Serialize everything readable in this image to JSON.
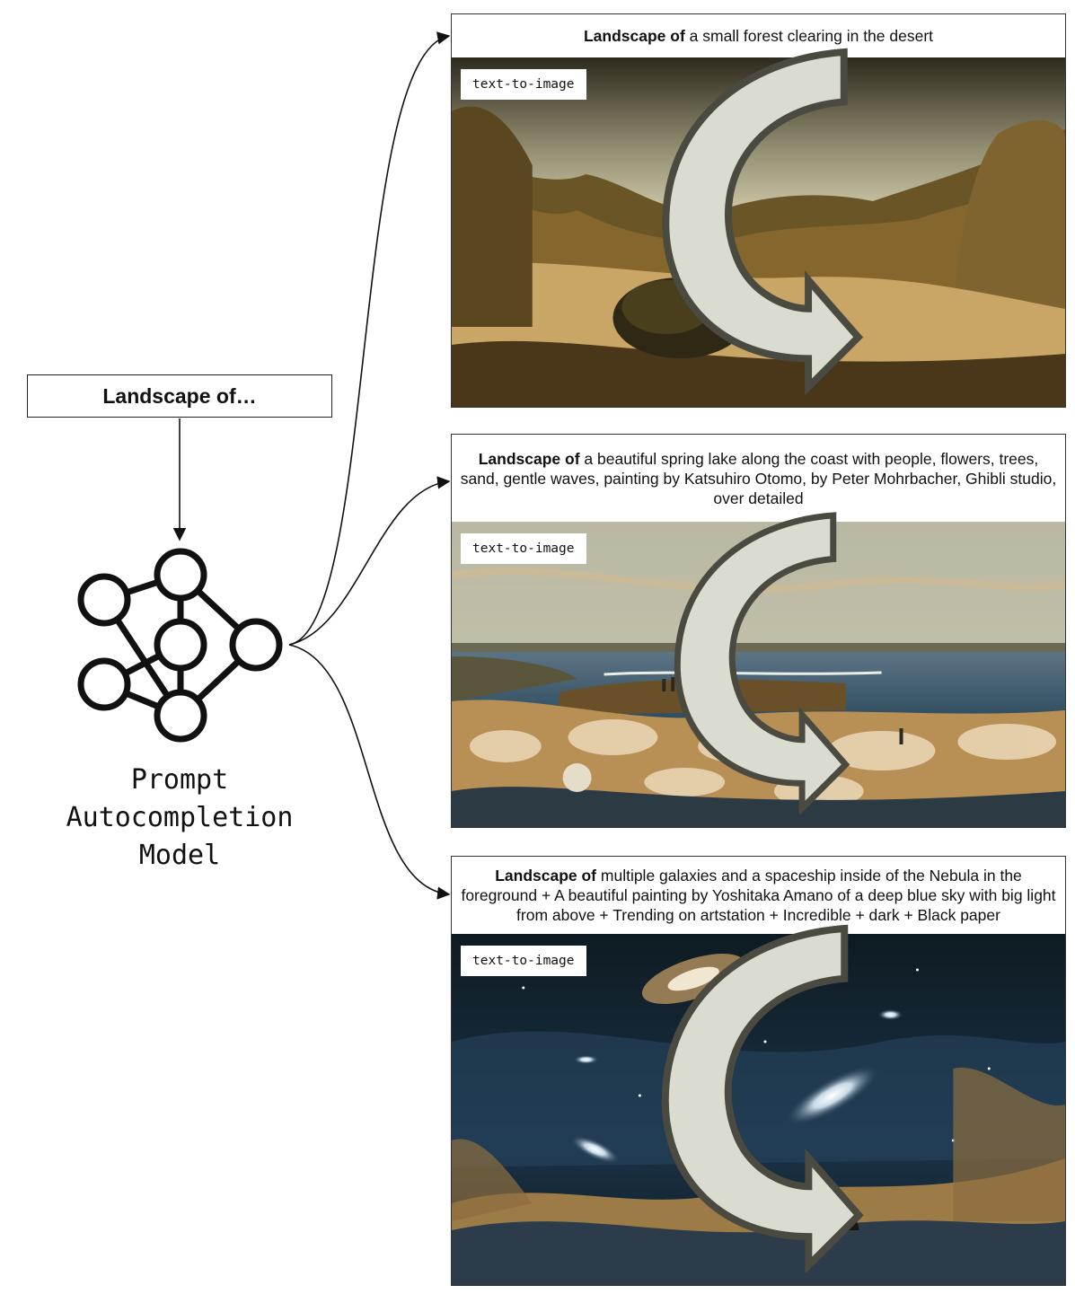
{
  "input": {
    "text": "Landscape of…"
  },
  "model": {
    "lines": [
      "Prompt",
      "Autocompletion",
      "Model"
    ]
  },
  "panels": [
    {
      "prefix": "Landscape of",
      "completion": " a small forest clearing in the desert",
      "tag": "text-to-image",
      "scene": "desert-forest-clearing-painting"
    },
    {
      "prefix": "Landscape of",
      "completion": " a beautiful spring lake along the coast with people, flowers, trees, sand, gentle waves, painting by Katsuhiro Otomo, by Peter Mohrbacher, Ghibli studio, over detailed",
      "tag": "text-to-image",
      "scene": "spring-lake-coast-painting"
    },
    {
      "prefix": "Landscape of",
      "completion": " multiple galaxies and a spaceship inside of the Nebula in the foreground + A beautiful painting by Yoshitaka Amano of a deep blue sky with big light from above + Trending on artstation + Incredible + dark + Black paper",
      "tag": "text-to-image",
      "scene": "galaxies-nebula-painting"
    }
  ],
  "colors": {
    "line": "#111111",
    "tag_arrow_fill": "#d9dccf",
    "tag_arrow_stroke": "#4a4a40"
  },
  "icons": [
    "neural-network-icon",
    "curved-arrow-icon"
  ]
}
